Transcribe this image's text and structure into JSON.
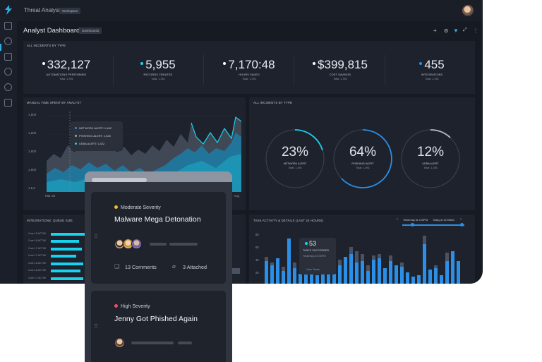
{
  "topbar": {
    "title": "Threat Analysis",
    "chip": "Workspace"
  },
  "header": {
    "title": "Analyst Dashboard",
    "chip": "Dashboards"
  },
  "kpi_section": {
    "title": "ALL INCIDENTS BY TYPE",
    "items": [
      {
        "value": "332,127",
        "label": "AUTOMATIONS PERFORMED",
        "total": "Total: 1,391",
        "dot": "#ffffff"
      },
      {
        "value": "5,955",
        "label": "RECORDS CREATED",
        "total": "Total: 1,391",
        "dot": "#23d6e6"
      },
      {
        "value": "7,170:48",
        "label": "HOURS SAVED",
        "total": "Total: 1,391",
        "dot": "#ffffff"
      },
      {
        "value": "$399,815",
        "label": "COST SAVINGS",
        "total": "Total: 1,391",
        "dot": "#ffffff"
      },
      {
        "value": "455",
        "label": "INTEGRATIONS",
        "total": "Total: 1,391",
        "dot": "#2b8fe8"
      }
    ]
  },
  "manual_time": {
    "title": "MANUAL TIME SPENT BY ANALYST",
    "y_ticks": [
      "1,800",
      "1,600",
      "1,600",
      "1,600",
      "1,5,0"
    ],
    "x_ticks": [
      "Mar 28",
      "Aug"
    ],
    "tooltip": [
      {
        "label": "NETWORK ALERT: 1,462",
        "color": "#2b8fe8"
      },
      {
        "label": "PHISHING ALERT: 1,626",
        "color": "#9aa3b2"
      },
      {
        "label": "UEBA ALERT: 1,522",
        "color": "#17d3f0"
      }
    ]
  },
  "rings": {
    "title": "ALL INCIDENTS BY TYPE",
    "items": [
      {
        "value": "23%",
        "label": "NETWORK ALERT",
        "total": "Total: 1,391"
      },
      {
        "value": "64%",
        "label": "PHISHING ALERT",
        "total": "Total: 1,891"
      },
      {
        "value": "12%",
        "label": "UEBA ALERT",
        "total": "Total: 1,391"
      }
    ]
  },
  "queue": {
    "title": "INTEGRATIONS: QUEUE SIZE",
    "rows": [
      "Core 15 ACTIM",
      "Core 16 ACTIM",
      "Core 17 ACTIM",
      "Core 17 ACTIM",
      "Core 18 ACTIM",
      "Core 18 ACTIM",
      "Core 17 ACTIM",
      "Core 18 ACTIM"
    ]
  },
  "task_activity": {
    "title": "TASK ACTIVITY & DETAILS (LAST 24 HOURS)",
    "range_start": "Yesterday at 1:00PM",
    "range_end": "Today at 12:00AM",
    "y_ticks": [
      "80",
      "60",
      "40",
      "20"
    ],
    "tooltip_value": "53",
    "tooltip_label": "TASKS SUCCEEDED",
    "tooltip_sub": "Yesterday at 8:00PM",
    "tooltip_link": "View Tasks"
  },
  "cards": [
    {
      "severity": "Moderate Severity",
      "severity_color": "#f5b82e",
      "title": "Malware Mega Detonation",
      "comments": "13 Comments",
      "attached": "3 Attached"
    },
    {
      "severity": "High Severity",
      "severity_color": "#f04b6a",
      "title": "Jenny Got Phished Again"
    }
  ],
  "icons": [
    "logo-icon",
    "settings-icon",
    "filter-icon",
    "expand-icon",
    "more-icon",
    "comment-icon",
    "attachment-icon"
  ]
}
